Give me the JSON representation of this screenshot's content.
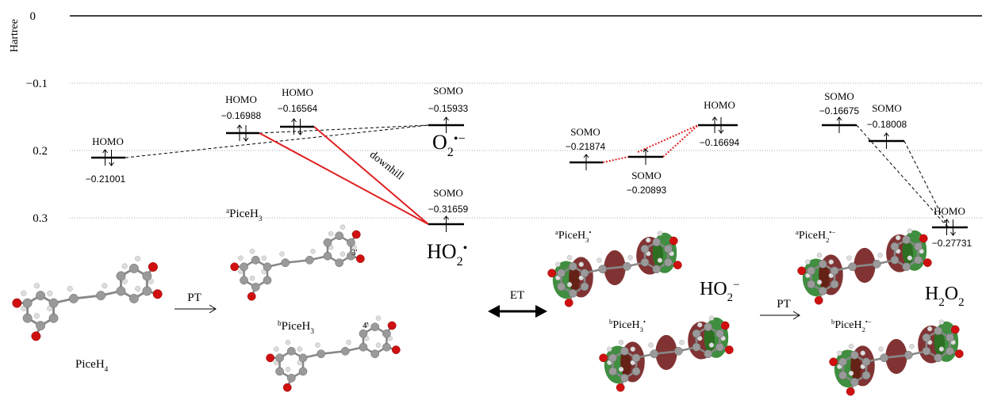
{
  "axis": {
    "label": "Hartree",
    "ticks": [
      "0",
      "−0.1",
      "0.2",
      "0.3"
    ]
  },
  "levels": [
    {
      "orbital": "HOMO",
      "energy": "−0.21001"
    },
    {
      "orbital": "HOMO",
      "energy": "−0.16988"
    },
    {
      "orbital": "HOMO",
      "energy": "−0.16564"
    },
    {
      "orbital": "SOMO",
      "energy": "−0.15933"
    },
    {
      "orbital": "SOMO",
      "energy": "−0.31659"
    },
    {
      "orbital": "SOMO",
      "energy": "−0.21874"
    },
    {
      "orbital": "SOMO",
      "energy": "−0.20893"
    },
    {
      "orbital": "HOMO",
      "energy": "−0.16694"
    },
    {
      "orbital": "SOMO",
      "energy": "−0.16675"
    },
    {
      "orbital": "SOMO",
      "energy": "−0.18008"
    },
    {
      "orbital": "HOMO",
      "energy": "−0.27731"
    }
  ],
  "annotations": {
    "downhill": "downhill",
    "pt_left": "PT",
    "et": "ET",
    "pt_right": "PT",
    "site_3": "3'",
    "site_4": "4'"
  },
  "formulas": [
    {
      "parts": [
        {
          "text": "O",
          "style": "normal"
        },
        {
          "text": "2",
          "style": "sub"
        },
        {
          "text": "•−",
          "style": "sup"
        }
      ]
    },
    {
      "parts": [
        {
          "text": "HO",
          "style": "normal"
        },
        {
          "text": "2",
          "style": "sub"
        },
        {
          "text": "•",
          "style": "sup"
        }
      ]
    },
    {
      "parts": [
        {
          "text": "HO",
          "style": "normal"
        },
        {
          "text": "2",
          "style": "sub"
        },
        {
          "text": "−",
          "style": "sup"
        }
      ]
    },
    {
      "parts": [
        {
          "text": "H",
          "style": "normal"
        },
        {
          "text": "2",
          "style": "sub"
        },
        {
          "text": "O",
          "style": "normal"
        },
        {
          "text": "2",
          "style": "sub"
        }
      ]
    },
    {
      "parts": [
        {
          "text": "PiceH",
          "style": "normal"
        },
        {
          "text": "4",
          "style": "sub"
        }
      ]
    },
    {
      "parts": [
        {
          "text": "a",
          "style": "sup"
        },
        {
          "text": "PiceH",
          "style": "normal"
        },
        {
          "text": "3",
          "style": "sub"
        }
      ]
    },
    {
      "parts": [
        {
          "text": "b",
          "style": "sup"
        },
        {
          "text": "PiceH",
          "style": "normal"
        },
        {
          "text": "3",
          "style": "sub"
        }
      ]
    },
    {
      "parts": [
        {
          "text": "a",
          "style": "sup"
        },
        {
          "text": "PiceH",
          "style": "normal"
        },
        {
          "text": "3",
          "style": "sub"
        },
        {
          "text": "•",
          "style": "sup"
        }
      ]
    },
    {
      "parts": [
        {
          "text": "b",
          "style": "sup"
        },
        {
          "text": "PiceH",
          "style": "normal"
        },
        {
          "text": "3",
          "style": "sub"
        },
        {
          "text": "•",
          "style": "sup"
        }
      ]
    },
    {
      "parts": [
        {
          "text": "a",
          "style": "sup"
        },
        {
          "text": "PiceH",
          "style": "normal"
        },
        {
          "text": "2",
          "style": "sub"
        },
        {
          "text": "•−",
          "style": "sup"
        }
      ]
    },
    {
      "parts": [
        {
          "text": "b",
          "style": "sup"
        },
        {
          "text": "PiceH",
          "style": "normal"
        },
        {
          "text": "2",
          "style": "sub"
        },
        {
          "text": "•−",
          "style": "sup"
        }
      ]
    }
  ]
}
